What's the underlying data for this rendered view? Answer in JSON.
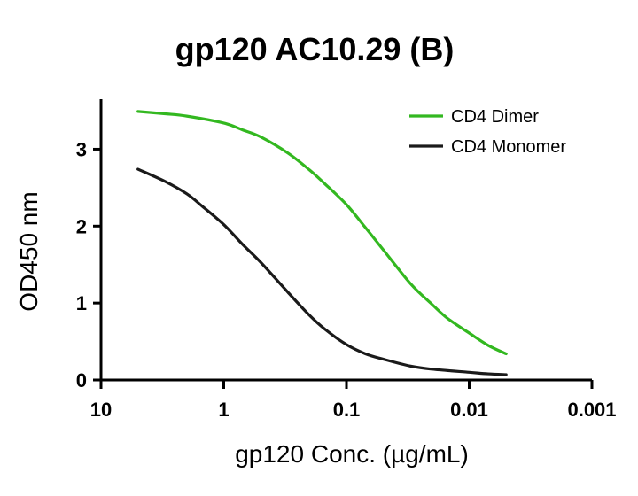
{
  "chart_data": {
    "type": "line",
    "title": "gp120 AC10.29 (B)",
    "xlabel": "gp120 Conc. (µg/mL)",
    "ylabel": "OD450 nm",
    "x_scale": "log",
    "x_reversed": true,
    "xlim": [
      10,
      0.001
    ],
    "ylim": [
      0,
      3.65
    ],
    "x_ticks": [
      10,
      1,
      0.1,
      0.01,
      0.001
    ],
    "x_tick_labels": [
      "10",
      "1",
      "0.1",
      "0.01",
      "0.001"
    ],
    "y_ticks": [
      0,
      1,
      2,
      3
    ],
    "y_tick_labels": [
      "0",
      "1",
      "2",
      "3"
    ],
    "grid": false,
    "legend_position": "top-right",
    "series": [
      {
        "name": "CD4 Dimer",
        "color": "#33b820",
        "x": [
          5,
          3,
          2,
          1,
          0.7,
          0.5,
          0.3,
          0.2,
          0.15,
          0.1,
          0.07,
          0.05,
          0.03,
          0.02,
          0.015,
          0.01,
          0.007,
          0.005
        ],
        "y": [
          3.49,
          3.46,
          3.43,
          3.34,
          3.25,
          3.16,
          2.95,
          2.73,
          2.55,
          2.28,
          1.98,
          1.69,
          1.25,
          0.98,
          0.8,
          0.61,
          0.45,
          0.34
        ]
      },
      {
        "name": "CD4 Monomer",
        "color": "#1a1a1a",
        "x": [
          5,
          3,
          2,
          1.5,
          1,
          0.7,
          0.5,
          0.3,
          0.2,
          0.15,
          0.1,
          0.07,
          0.05,
          0.03,
          0.02,
          0.01,
          0.007,
          0.005
        ],
        "y": [
          2.74,
          2.58,
          2.42,
          2.26,
          2.02,
          1.76,
          1.53,
          1.14,
          0.84,
          0.66,
          0.46,
          0.34,
          0.27,
          0.18,
          0.14,
          0.1,
          0.08,
          0.07
        ]
      }
    ]
  }
}
